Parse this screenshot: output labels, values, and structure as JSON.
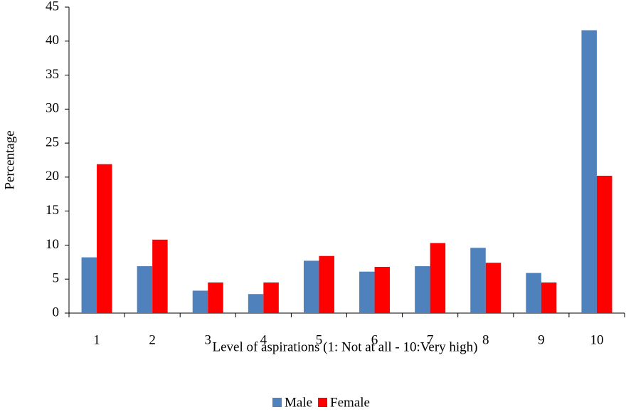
{
  "chart_data": {
    "type": "bar",
    "x_label": "Level of aspirations (1: Not at all - 10:Very high)",
    "y_label": "Percentage",
    "categories": [
      "1",
      "2",
      "3",
      "4",
      "5",
      "6",
      "7",
      "8",
      "9",
      "10"
    ],
    "series": [
      {
        "name": "Male",
        "color": "#4f81bd",
        "values": [
          8.2,
          6.9,
          3.3,
          2.8,
          7.7,
          6.1,
          6.9,
          9.6,
          5.9,
          41.6
        ]
      },
      {
        "name": "Female",
        "color": "#ff0000",
        "values": [
          21.9,
          10.8,
          4.5,
          4.5,
          8.4,
          6.8,
          10.3,
          7.4,
          4.5,
          20.2
        ]
      }
    ],
    "ylim": [
      0,
      45
    ],
    "yticks": [
      0,
      5,
      10,
      15,
      20,
      25,
      30,
      35,
      40,
      45
    ],
    "grid": false,
    "legend": "bottom"
  }
}
